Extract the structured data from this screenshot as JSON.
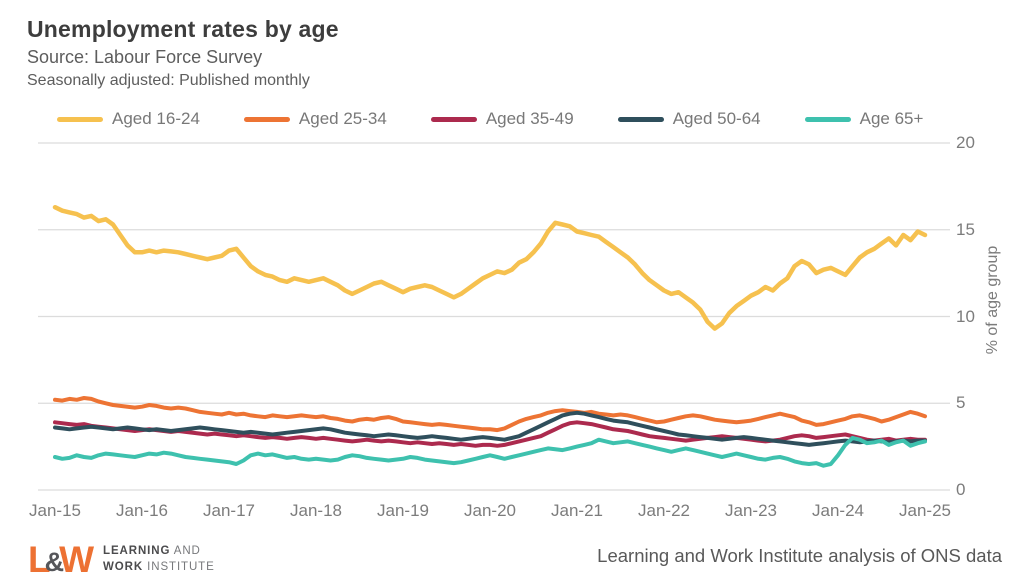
{
  "header": {
    "title": "Unemployment rates by age",
    "subtitle1": "Source: Labour Force Survey",
    "subtitle2": "Seasonally adjusted: Published monthly"
  },
  "chart_data": {
    "type": "line",
    "x_unit": "month",
    "x_range": [
      "Jan-2015",
      "Jan-2025"
    ],
    "x_tick_labels": [
      "Jan-15",
      "Jan-16",
      "Jan-17",
      "Jan-18",
      "Jan-19",
      "Jan-20",
      "Jan-21",
      "Jan-22",
      "Jan-23",
      "Jan-24",
      "Jan-25"
    ],
    "ylabel": "% of age group",
    "ylim": [
      0,
      20
    ],
    "y_ticks": [
      0,
      5,
      10,
      15,
      20
    ],
    "grid": "horizontal-only",
    "legend_position": "top",
    "grid_color": "#dcdcdc",
    "axis_text_color": "#7c7c7c",
    "series": [
      {
        "name": "Aged 16-24",
        "color": "#f6c14f",
        "values": [
          16.3,
          16.1,
          16.0,
          15.9,
          15.7,
          15.8,
          15.5,
          15.6,
          15.3,
          14.7,
          14.1,
          13.7,
          13.7,
          13.8,
          13.7,
          13.8,
          13.75,
          13.7,
          13.6,
          13.5,
          13.4,
          13.3,
          13.4,
          13.5,
          13.8,
          13.9,
          13.4,
          12.9,
          12.6,
          12.4,
          12.3,
          12.1,
          12.0,
          12.2,
          12.1,
          12.0,
          12.1,
          12.2,
          12.0,
          11.8,
          11.5,
          11.3,
          11.5,
          11.7,
          11.9,
          12.0,
          11.8,
          11.6,
          11.4,
          11.6,
          11.7,
          11.8,
          11.7,
          11.5,
          11.3,
          11.1,
          11.3,
          11.6,
          11.9,
          12.2,
          12.4,
          12.6,
          12.5,
          12.7,
          13.1,
          13.3,
          13.7,
          14.2,
          14.9,
          15.4,
          15.3,
          15.2,
          14.9,
          14.8,
          14.7,
          14.6,
          14.3,
          14.0,
          13.7,
          13.4,
          13.0,
          12.5,
          12.1,
          11.8,
          11.5,
          11.3,
          11.4,
          11.1,
          10.8,
          10.4,
          9.7,
          9.3,
          9.6,
          10.2,
          10.6,
          10.9,
          11.2,
          11.4,
          11.7,
          11.5,
          11.9,
          12.2,
          12.9,
          13.2,
          13.0,
          12.5,
          12.7,
          12.8,
          12.6,
          12.4,
          12.9,
          13.4,
          13.7,
          13.9,
          14.2,
          14.5,
          14.1,
          14.7,
          14.4,
          14.9,
          14.7
        ]
      },
      {
        "name": "Aged 25-34",
        "color": "#ed7434",
        "values": [
          5.2,
          5.15,
          5.25,
          5.2,
          5.3,
          5.25,
          5.1,
          5.0,
          4.9,
          4.85,
          4.8,
          4.75,
          4.8,
          4.9,
          4.85,
          4.75,
          4.7,
          4.75,
          4.7,
          4.6,
          4.5,
          4.45,
          4.4,
          4.35,
          4.45,
          4.35,
          4.4,
          4.3,
          4.25,
          4.2,
          4.3,
          4.25,
          4.2,
          4.25,
          4.3,
          4.25,
          4.2,
          4.25,
          4.15,
          4.1,
          4.0,
          3.95,
          4.05,
          4.1,
          4.05,
          4.15,
          4.2,
          4.1,
          3.95,
          3.9,
          3.85,
          3.8,
          3.75,
          3.8,
          3.75,
          3.7,
          3.65,
          3.6,
          3.55,
          3.5,
          3.5,
          3.45,
          3.55,
          3.75,
          3.95,
          4.1,
          4.2,
          4.3,
          4.45,
          4.55,
          4.6,
          4.55,
          4.5,
          4.45,
          4.5,
          4.4,
          4.35,
          4.3,
          4.35,
          4.3,
          4.2,
          4.1,
          4.0,
          3.9,
          3.95,
          4.05,
          4.15,
          4.25,
          4.3,
          4.25,
          4.15,
          4.05,
          4.0,
          3.95,
          3.9,
          3.95,
          4.0,
          4.1,
          4.2,
          4.3,
          4.4,
          4.3,
          4.2,
          4.0,
          3.9,
          3.75,
          3.8,
          3.9,
          4.0,
          4.1,
          4.25,
          4.3,
          4.2,
          4.1,
          3.95,
          4.05,
          4.2,
          4.35,
          4.5,
          4.4,
          4.25
        ]
      },
      {
        "name": "Aged 35-49",
        "color": "#ac2a4e",
        "values": [
          3.9,
          3.85,
          3.8,
          3.75,
          3.8,
          3.7,
          3.65,
          3.6,
          3.55,
          3.5,
          3.45,
          3.4,
          3.45,
          3.5,
          3.45,
          3.4,
          3.35,
          3.4,
          3.35,
          3.3,
          3.25,
          3.2,
          3.25,
          3.2,
          3.15,
          3.1,
          3.15,
          3.1,
          3.05,
          3.0,
          3.05,
          3.0,
          2.95,
          3.0,
          3.05,
          3.0,
          2.95,
          3.0,
          2.95,
          2.9,
          2.85,
          2.8,
          2.85,
          2.9,
          2.85,
          2.8,
          2.85,
          2.8,
          2.75,
          2.7,
          2.75,
          2.7,
          2.65,
          2.7,
          2.65,
          2.6,
          2.65,
          2.6,
          2.55,
          2.6,
          2.6,
          2.55,
          2.6,
          2.7,
          2.8,
          2.9,
          3.0,
          3.1,
          3.3,
          3.5,
          3.7,
          3.85,
          3.9,
          3.85,
          3.8,
          3.7,
          3.6,
          3.5,
          3.45,
          3.4,
          3.3,
          3.2,
          3.1,
          3.05,
          3.0,
          2.95,
          2.9,
          2.85,
          2.9,
          2.95,
          3.0,
          3.05,
          3.1,
          3.05,
          3.0,
          2.95,
          2.9,
          2.85,
          2.8,
          2.85,
          2.9,
          3.0,
          3.1,
          3.15,
          3.1,
          3.0,
          3.05,
          3.1,
          3.15,
          3.2,
          3.1,
          3.0,
          2.9,
          2.85,
          2.9,
          2.95,
          2.85,
          2.9,
          2.95,
          2.9,
          2.9
        ]
      },
      {
        "name": "Aged 50-64",
        "color": "#2f4f5c",
        "values": [
          3.6,
          3.55,
          3.5,
          3.55,
          3.6,
          3.65,
          3.6,
          3.55,
          3.5,
          3.55,
          3.6,
          3.55,
          3.5,
          3.45,
          3.5,
          3.45,
          3.4,
          3.45,
          3.5,
          3.55,
          3.6,
          3.55,
          3.5,
          3.45,
          3.4,
          3.35,
          3.3,
          3.35,
          3.3,
          3.25,
          3.2,
          3.25,
          3.3,
          3.35,
          3.4,
          3.45,
          3.5,
          3.55,
          3.5,
          3.4,
          3.3,
          3.25,
          3.2,
          3.15,
          3.1,
          3.15,
          3.2,
          3.15,
          3.1,
          3.05,
          3.0,
          3.05,
          3.1,
          3.05,
          3.0,
          2.95,
          2.9,
          2.95,
          3.0,
          3.05,
          3.0,
          2.95,
          2.9,
          3.0,
          3.1,
          3.3,
          3.5,
          3.7,
          3.9,
          4.1,
          4.3,
          4.4,
          4.45,
          4.4,
          4.3,
          4.2,
          4.1,
          4.0,
          3.95,
          3.9,
          3.8,
          3.7,
          3.6,
          3.5,
          3.4,
          3.3,
          3.2,
          3.15,
          3.1,
          3.05,
          3.0,
          2.95,
          2.9,
          2.95,
          3.0,
          3.05,
          3.0,
          2.95,
          2.9,
          2.85,
          2.8,
          2.75,
          2.7,
          2.65,
          2.6,
          2.65,
          2.7,
          2.75,
          2.8,
          2.85,
          2.8,
          2.75,
          2.8,
          2.85,
          2.8,
          2.75,
          2.8,
          2.85,
          2.8,
          2.85,
          2.85
        ]
      },
      {
        "name": "Age 65+",
        "color": "#3ec1ae",
        "values": [
          1.9,
          1.8,
          1.85,
          2.0,
          1.9,
          1.85,
          2.0,
          2.1,
          2.05,
          2.0,
          1.95,
          1.9,
          2.0,
          2.1,
          2.05,
          2.15,
          2.1,
          2.0,
          1.9,
          1.85,
          1.8,
          1.75,
          1.7,
          1.65,
          1.6,
          1.5,
          1.7,
          2.0,
          2.1,
          2.0,
          2.05,
          1.95,
          1.85,
          1.9,
          1.8,
          1.75,
          1.8,
          1.75,
          1.7,
          1.75,
          1.9,
          2.0,
          1.95,
          1.85,
          1.8,
          1.75,
          1.7,
          1.75,
          1.8,
          1.9,
          1.85,
          1.75,
          1.7,
          1.65,
          1.6,
          1.55,
          1.6,
          1.7,
          1.8,
          1.9,
          2.0,
          1.9,
          1.8,
          1.9,
          2.0,
          2.1,
          2.2,
          2.3,
          2.4,
          2.35,
          2.3,
          2.4,
          2.5,
          2.6,
          2.7,
          2.9,
          2.8,
          2.7,
          2.75,
          2.8,
          2.7,
          2.6,
          2.5,
          2.4,
          2.3,
          2.2,
          2.3,
          2.4,
          2.3,
          2.2,
          2.1,
          2.0,
          1.9,
          2.0,
          2.1,
          2.0,
          1.9,
          1.8,
          1.75,
          1.85,
          1.9,
          1.8,
          1.65,
          1.55,
          1.5,
          1.55,
          1.4,
          1.5,
          2.0,
          2.6,
          3.0,
          2.9,
          2.7,
          2.75,
          2.85,
          2.6,
          2.75,
          2.85,
          2.55,
          2.7,
          2.8
        ]
      }
    ]
  },
  "footer": {
    "logo": {
      "l": "L",
      "amp": "&",
      "w": "W",
      "line1_bold": "LEARNING",
      "line1_rest": " AND",
      "line2_bold": "WORK",
      "line2_rest": " INSTITUTE"
    },
    "attribution": "Learning and Work Institute analysis of ONS data"
  }
}
